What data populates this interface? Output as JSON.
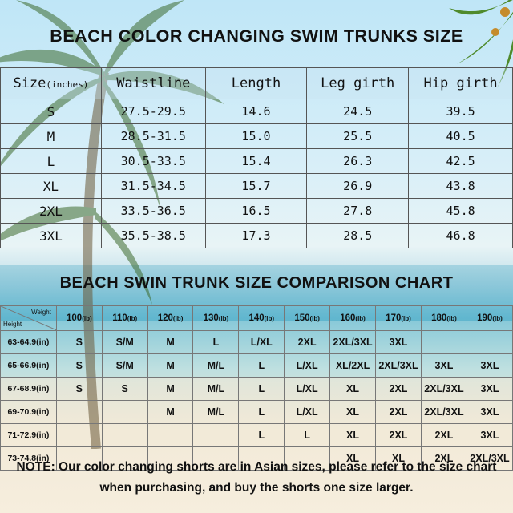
{
  "title_main": "BEACH COLOR CHANGING SWIM TRUNKS SIZE",
  "size_table": {
    "headers": [
      "Size",
      "(inches)",
      "Waistline",
      "Length",
      "Leg girth",
      "Hip girth"
    ],
    "rows": [
      [
        "S",
        "27.5-29.5",
        "14.6",
        "24.5",
        "39.5"
      ],
      [
        "M",
        "28.5-31.5",
        "15.0",
        "25.5",
        "40.5"
      ],
      [
        "L",
        "30.5-33.5",
        "15.4",
        "26.3",
        "42.5"
      ],
      [
        "XL",
        "31.5-34.5",
        "15.7",
        "26.9",
        "43.8"
      ],
      [
        "2XL",
        "33.5-36.5",
        "16.5",
        "27.8",
        "45.8"
      ],
      [
        "3XL",
        "35.5-38.5",
        "17.3",
        "28.5",
        "46.8"
      ]
    ]
  },
  "title_chart": "BEACH SWIN TRUNK SIZE COMPARISON CHART",
  "comparison": {
    "corner_weight": "Weight",
    "corner_height": "Height",
    "unit_weight": "(lb)",
    "unit_height": "(in)",
    "weights": [
      "100",
      "110",
      "120",
      "130",
      "140",
      "150",
      "160",
      "170",
      "180",
      "190"
    ],
    "heights": [
      "63-64.9",
      "65-66.9",
      "67-68.9",
      "69-70.9",
      "71-72.9",
      "73-74.8"
    ],
    "rows": [
      [
        "S",
        "S/M",
        "M",
        "L",
        "L/XL",
        "2XL",
        "2XL/3XL",
        "3XL",
        "",
        ""
      ],
      [
        "S",
        "S/M",
        "M",
        "M/L",
        "L",
        "L/XL",
        "XL/2XL",
        "2XL/3XL",
        "3XL",
        "3XL"
      ],
      [
        "S",
        "S",
        "M",
        "M/L",
        "L",
        "L/XL",
        "XL",
        "2XL",
        "2XL/3XL",
        "3XL"
      ],
      [
        "",
        "",
        "M",
        "M/L",
        "L",
        "L/XL",
        "XL",
        "2XL",
        "2XL/3XL",
        "3XL"
      ],
      [
        "",
        "",
        "",
        "",
        "L",
        "L",
        "XL",
        "2XL",
        "2XL",
        "3XL"
      ],
      [
        "",
        "",
        "",
        "",
        "",
        "",
        "XL",
        "XL",
        "2XL",
        "2XL/3XL"
      ]
    ]
  },
  "note": {
    "label": "NOTE:",
    "text": " Our color changing shorts are in Asian sizes, please refer to the size chart when purchasing, and buy the shorts one size larger."
  }
}
